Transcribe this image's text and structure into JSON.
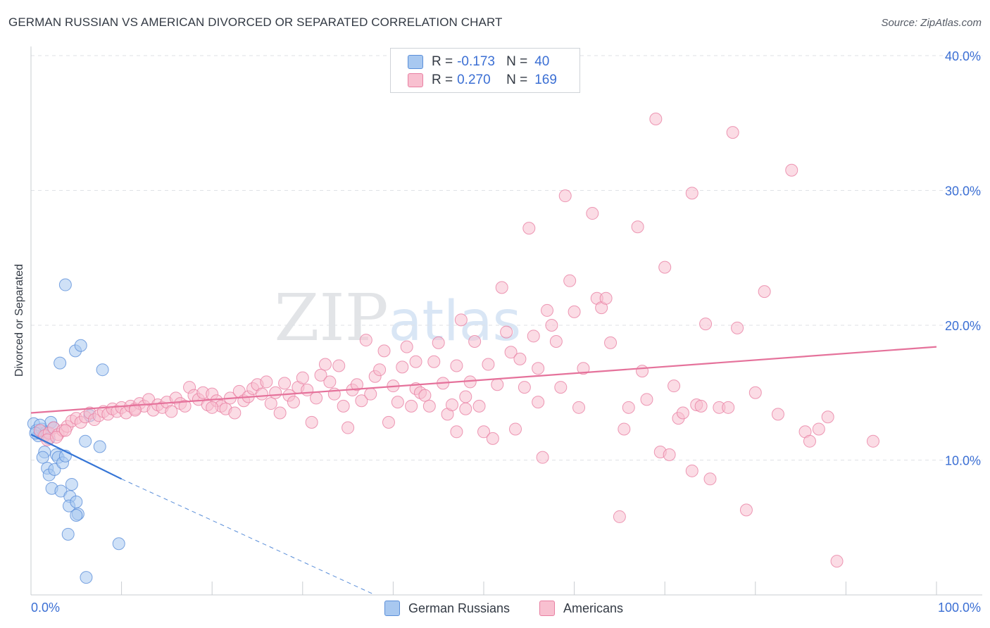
{
  "title": "GERMAN RUSSIAN VS AMERICAN DIVORCED OR SEPARATED CORRELATION CHART",
  "source": "Source: ZipAtlas.com",
  "watermark": "ZIPatlas",
  "legend": {
    "rows": [
      {
        "r_label": "R =",
        "r_value": "-0.173",
        "n_label": "N =",
        "n_value": "40",
        "color": "#a8c8f0",
        "border": "#5b8fd9"
      },
      {
        "r_label": "R =",
        "r_value": "0.270",
        "n_label": "N =",
        "n_value": "169",
        "color": "#f8c0d0",
        "border": "#e87fa2"
      }
    ]
  },
  "bottom_legend": [
    {
      "label": "German Russians",
      "color": "#a8c8f0",
      "border": "#5b8fd9"
    },
    {
      "label": "Americans",
      "color": "#f8c0d0",
      "border": "#e87fa2"
    }
  ],
  "chart_data": {
    "type": "scatter",
    "title": "GERMAN RUSSIAN VS AMERICAN DIVORCED OR SEPARATED CORRELATION CHART",
    "xlabel": "",
    "ylabel": "Divorced or Separated",
    "xlim": [
      0,
      100
    ],
    "ylim": [
      0,
      40
    ],
    "x_tick_labels": [
      "0.0%",
      "100.0%"
    ],
    "y_ticks": [
      10,
      20,
      30,
      40
    ],
    "y_tick_labels": [
      "10.0%",
      "20.0%",
      "30.0%",
      "40.0%"
    ],
    "grid": true,
    "series": [
      {
        "name": "German Russians",
        "color": "#5b8fd9",
        "fill": "#a8c8f0",
        "points": [
          [
            0.3,
            12.7
          ],
          [
            0.6,
            12.2
          ],
          [
            0.8,
            11.8
          ],
          [
            1.0,
            12.0
          ],
          [
            1.2,
            12.3
          ],
          [
            1.4,
            11.9
          ],
          [
            1.5,
            10.6
          ],
          [
            1.3,
            10.2
          ],
          [
            1.7,
            12.1
          ],
          [
            2.0,
            11.6
          ],
          [
            2.2,
            12.8
          ],
          [
            1.8,
            9.4
          ],
          [
            2.0,
            8.9
          ],
          [
            2.3,
            7.9
          ],
          [
            2.6,
            9.3
          ],
          [
            2.8,
            10.4
          ],
          [
            3.0,
            10.2
          ],
          [
            3.3,
            7.7
          ],
          [
            3.5,
            9.8
          ],
          [
            3.8,
            10.3
          ],
          [
            4.3,
            7.3
          ],
          [
            4.5,
            8.2
          ],
          [
            4.2,
            6.6
          ],
          [
            5.0,
            6.9
          ],
          [
            5.2,
            6.0
          ],
          [
            5.0,
            5.9
          ],
          [
            4.1,
            4.5
          ],
          [
            3.2,
            17.2
          ],
          [
            3.8,
            23.0
          ],
          [
            4.9,
            18.1
          ],
          [
            5.5,
            18.5
          ],
          [
            7.9,
            16.7
          ],
          [
            6.0,
            11.4
          ],
          [
            7.6,
            11.0
          ],
          [
            9.7,
            3.8
          ],
          [
            6.1,
            1.3
          ],
          [
            6.5,
            13.3
          ],
          [
            1.0,
            12.6
          ],
          [
            0.5,
            12.0
          ],
          [
            2.5,
            12.4
          ]
        ],
        "trend": {
          "x0": 0,
          "y0": 11.9,
          "x1": 10,
          "y1": 8.6,
          "dash_x1": 38,
          "dash_y1": -0.4
        }
      },
      {
        "name": "Americans",
        "color": "#e87fa2",
        "fill": "#f8c0d0",
        "points": [
          [
            1.0,
            12.2
          ],
          [
            1.5,
            11.8
          ],
          [
            2.0,
            12.0
          ],
          [
            2.5,
            12.4
          ],
          [
            3.0,
            11.9
          ],
          [
            3.5,
            12.2
          ],
          [
            4.0,
            12.5
          ],
          [
            4.5,
            12.9
          ],
          [
            5.0,
            13.1
          ],
          [
            5.5,
            12.8
          ],
          [
            6.0,
            13.2
          ],
          [
            6.5,
            13.5
          ],
          [
            7.0,
            13.0
          ],
          [
            7.5,
            13.3
          ],
          [
            8.0,
            13.6
          ],
          [
            8.5,
            13.4
          ],
          [
            9.0,
            13.8
          ],
          [
            9.5,
            13.6
          ],
          [
            10.0,
            13.9
          ],
          [
            10.5,
            13.5
          ],
          [
            11.0,
            14.0
          ],
          [
            11.5,
            13.8
          ],
          [
            12.0,
            14.2
          ],
          [
            12.5,
            14.0
          ],
          [
            13.0,
            14.5
          ],
          [
            13.5,
            13.7
          ],
          [
            14.0,
            14.1
          ],
          [
            14.5,
            13.9
          ],
          [
            15.0,
            14.3
          ],
          [
            15.5,
            13.6
          ],
          [
            16.0,
            14.6
          ],
          [
            16.5,
            14.2
          ],
          [
            17.0,
            14.0
          ],
          [
            17.5,
            15.4
          ],
          [
            18.0,
            14.8
          ],
          [
            18.5,
            14.5
          ],
          [
            19.0,
            15.0
          ],
          [
            19.5,
            14.1
          ],
          [
            20.0,
            14.9
          ],
          [
            20.5,
            14.4
          ],
          [
            21.0,
            14.0
          ],
          [
            21.5,
            13.8
          ],
          [
            22.0,
            14.6
          ],
          [
            22.5,
            13.5
          ],
          [
            23.0,
            15.1
          ],
          [
            23.5,
            14.4
          ],
          [
            24.0,
            14.7
          ],
          [
            24.5,
            15.3
          ],
          [
            25.0,
            15.6
          ],
          [
            25.5,
            14.9
          ],
          [
            26.0,
            15.8
          ],
          [
            26.5,
            14.2
          ],
          [
            27.0,
            15.0
          ],
          [
            27.5,
            13.5
          ],
          [
            28.0,
            15.7
          ],
          [
            28.5,
            14.8
          ],
          [
            29.0,
            14.3
          ],
          [
            29.5,
            15.4
          ],
          [
            30.0,
            16.1
          ],
          [
            30.5,
            15.2
          ],
          [
            31.0,
            12.8
          ],
          [
            31.5,
            14.6
          ],
          [
            32.0,
            16.3
          ],
          [
            32.5,
            17.1
          ],
          [
            33.0,
            15.8
          ],
          [
            33.5,
            14.9
          ],
          [
            34.0,
            17.0
          ],
          [
            34.5,
            14.0
          ],
          [
            35.0,
            12.4
          ],
          [
            35.5,
            15.2
          ],
          [
            36.0,
            15.6
          ],
          [
            36.5,
            14.4
          ],
          [
            37.0,
            18.9
          ],
          [
            37.5,
            14.9
          ],
          [
            38.0,
            16.2
          ],
          [
            38.5,
            16.7
          ],
          [
            39.0,
            18.1
          ],
          [
            39.5,
            12.8
          ],
          [
            40.0,
            15.5
          ],
          [
            40.5,
            14.3
          ],
          [
            41.0,
            16.9
          ],
          [
            41.5,
            18.4
          ],
          [
            42.0,
            14.0
          ],
          [
            42.5,
            15.3
          ],
          [
            43.0,
            15.0
          ],
          [
            43.5,
            14.8
          ],
          [
            44.0,
            14.0
          ],
          [
            44.5,
            17.3
          ],
          [
            45.0,
            18.7
          ],
          [
            45.5,
            15.7
          ],
          [
            46.0,
            13.4
          ],
          [
            46.5,
            14.1
          ],
          [
            47.0,
            17.0
          ],
          [
            47.5,
            20.4
          ],
          [
            48.0,
            14.7
          ],
          [
            48.5,
            15.8
          ],
          [
            49.0,
            18.8
          ],
          [
            49.5,
            14.0
          ],
          [
            50.0,
            12.1
          ],
          [
            50.5,
            17.1
          ],
          [
            51.0,
            11.6
          ],
          [
            51.5,
            15.6
          ],
          [
            52.0,
            22.8
          ],
          [
            52.5,
            19.5
          ],
          [
            53.0,
            18.0
          ],
          [
            53.5,
            12.3
          ],
          [
            54.0,
            17.5
          ],
          [
            54.5,
            15.4
          ],
          [
            55.0,
            27.2
          ],
          [
            55.5,
            19.2
          ],
          [
            56.0,
            16.8
          ],
          [
            56.5,
            10.2
          ],
          [
            57.0,
            21.1
          ],
          [
            57.5,
            20.0
          ],
          [
            58.0,
            18.8
          ],
          [
            58.5,
            15.4
          ],
          [
            59.0,
            29.6
          ],
          [
            59.5,
            23.3
          ],
          [
            60.0,
            21.0
          ],
          [
            60.5,
            13.9
          ],
          [
            61.0,
            16.8
          ],
          [
            62.0,
            28.3
          ],
          [
            62.5,
            22.0
          ],
          [
            63.0,
            21.3
          ],
          [
            63.5,
            22.0
          ],
          [
            64.0,
            18.7
          ],
          [
            65.0,
            5.8
          ],
          [
            65.5,
            12.3
          ],
          [
            66.0,
            13.9
          ],
          [
            67.0,
            27.3
          ],
          [
            67.5,
            16.6
          ],
          [
            68.0,
            14.5
          ],
          [
            69.0,
            35.3
          ],
          [
            69.5,
            10.6
          ],
          [
            70.0,
            24.3
          ],
          [
            70.5,
            10.4
          ],
          [
            71.0,
            15.5
          ],
          [
            71.5,
            13.1
          ],
          [
            72.0,
            13.5
          ],
          [
            73.0,
            29.8
          ],
          [
            73.5,
            14.1
          ],
          [
            74.5,
            20.1
          ],
          [
            75.0,
            8.6
          ],
          [
            76.0,
            13.9
          ],
          [
            77.5,
            34.3
          ],
          [
            78.0,
            19.8
          ],
          [
            79.0,
            6.3
          ],
          [
            80.0,
            15.0
          ],
          [
            81.0,
            22.5
          ],
          [
            82.5,
            13.4
          ],
          [
            84.0,
            31.5
          ],
          [
            85.5,
            12.1
          ],
          [
            86.0,
            11.4
          ],
          [
            87.0,
            12.3
          ],
          [
            88.0,
            13.2
          ],
          [
            89.0,
            2.5
          ],
          [
            93.0,
            11.4
          ],
          [
            1.8,
            11.5
          ],
          [
            2.8,
            11.7
          ],
          [
            3.8,
            12.2
          ],
          [
            73.0,
            9.2
          ],
          [
            74.0,
            14.0
          ],
          [
            77.0,
            13.9
          ],
          [
            56.0,
            14.3
          ],
          [
            48.0,
            13.8
          ],
          [
            47.0,
            12.1
          ],
          [
            42.5,
            17.3
          ],
          [
            20.0,
            13.9
          ],
          [
            11.5,
            13.7
          ]
        ],
        "trend": {
          "x0": 0,
          "y0": 13.5,
          "x1": 100,
          "y1": 18.4
        }
      }
    ]
  }
}
